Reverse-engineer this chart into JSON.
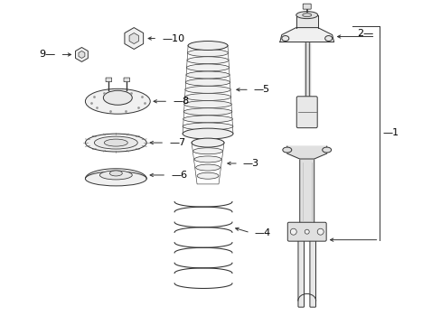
{
  "bg_color": "#ffffff",
  "line_color": "#333333",
  "text_color": "#000000",
  "lw": 0.7
}
